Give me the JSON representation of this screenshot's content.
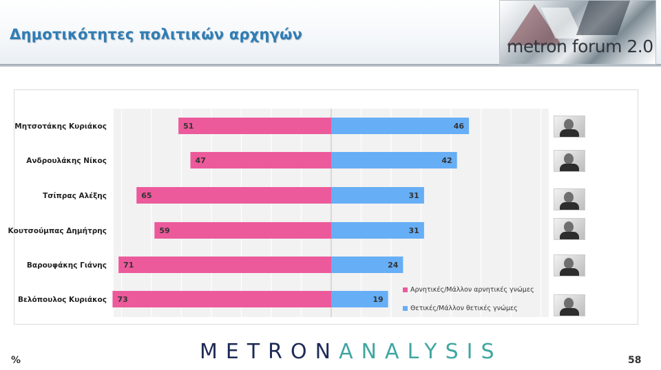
{
  "header": {
    "title": "Δημοτικότητες πολιτικών αρχηγών",
    "logo_text": "metron forum 2.0"
  },
  "colors": {
    "negative": "#ec5a9b",
    "positive": "#66aef5",
    "title": "#2f7db5"
  },
  "chart_data": {
    "type": "bar",
    "orientation": "horizontal-diverging",
    "categories": [
      "Μητσοτάκης Κυριάκος",
      "Ανδρουλάκης Νίκος",
      "Τσίπρας Αλέξης",
      "Κουτσούμπας Δημήτρης",
      "Βαρουφάκης Γιάνης",
      "Βελόπουλος Κυριάκος"
    ],
    "series": [
      {
        "name": "Αρνητικές/Μάλλον αρνητικές γνώμες",
        "values": [
          51,
          47,
          65,
          59,
          71,
          73
        ],
        "color": "#ec5a9b",
        "direction": "left"
      },
      {
        "name": "Θετικές/Μάλλον θετικές γνώμες",
        "values": [
          46,
          42,
          31,
          31,
          24,
          19
        ],
        "color": "#66aef5",
        "direction": "right"
      }
    ],
    "xlim": [
      -100,
      100
    ],
    "grid": true,
    "legend_position": "bottom-right"
  },
  "legend": {
    "negative": "Αρνητικές/Μάλλον αρνητικές γνώμες",
    "positive": "Θετικές/Μάλλον θετικές γνώμες"
  },
  "footer": {
    "logo_part1": "METRON",
    "logo_part2": "ANALYSIS",
    "unit": "%",
    "page": "58"
  }
}
